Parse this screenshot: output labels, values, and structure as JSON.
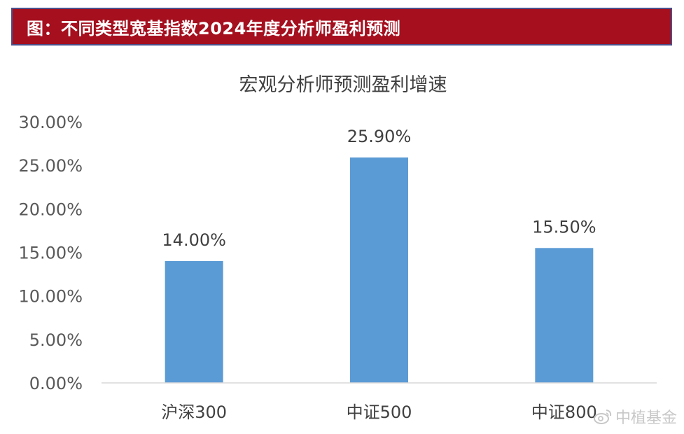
{
  "header": {
    "title": "图：不同类型宽基指数2024年度分析师盈利预测",
    "background_color": "#a50f1e",
    "border_color": "#4c4f8a"
  },
  "watermark": {
    "text": "中植基金",
    "icon": "weibo-icon"
  },
  "chart_data": {
    "type": "bar",
    "title": "宏观分析师预测盈利增速",
    "xlabel": "",
    "ylabel": "",
    "categories": [
      "沪深300",
      "中证500",
      "中证800"
    ],
    "values": [
      14.0,
      25.9,
      15.5
    ],
    "value_labels": [
      "14.00%",
      "25.90%",
      "15.50%"
    ],
    "ylim": [
      0,
      30
    ],
    "yticks": [
      0,
      5,
      10,
      15,
      20,
      25,
      30
    ],
    "ytick_labels": [
      "0.00%",
      "5.00%",
      "10.00%",
      "15.00%",
      "20.00%",
      "25.00%",
      "30.00%"
    ],
    "bar_color": "#5b9bd5",
    "grid": false,
    "legend": "none"
  }
}
